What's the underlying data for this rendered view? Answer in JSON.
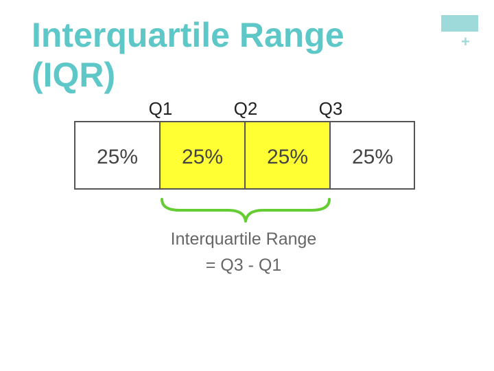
{
  "slide": {
    "title": "Interquartile Range\n(IQR)",
    "plus_glyph": "+"
  },
  "colors": {
    "title": "#5ec7c7",
    "accent": "#9fdada",
    "highlight": "#ffff33",
    "brace": "#66cc33",
    "label_gray": "#666666",
    "border": "#555555"
  },
  "diagram": {
    "quartile_labels": [
      "Q1",
      "Q2",
      "Q3"
    ],
    "segments": [
      {
        "label": "25%",
        "highlight": false
      },
      {
        "label": "25%",
        "highlight": true
      },
      {
        "label": "25%",
        "highlight": true
      },
      {
        "label": "25%",
        "highlight": false
      }
    ],
    "caption_line1": "Interquartile Range",
    "caption_line2": "= Q3 - Q1"
  }
}
